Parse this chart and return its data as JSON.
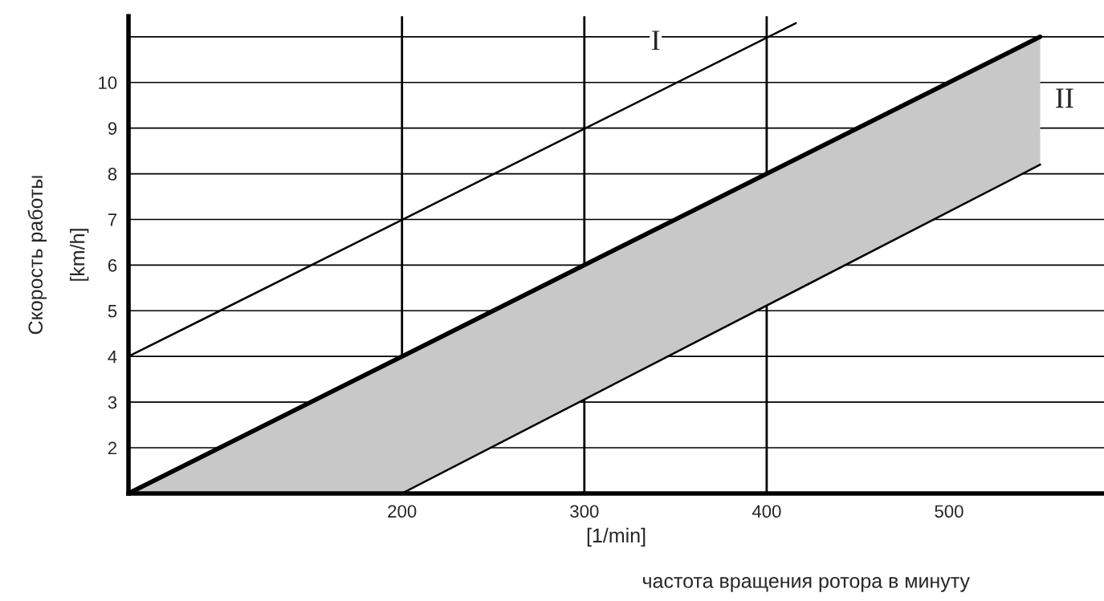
{
  "chart_data": {
    "type": "line",
    "xlabel": "[1/min]",
    "ylabel": "Скорость работы\n[km/h]",
    "annotations": [
      "частота вращения ротора в минуту"
    ],
    "series": [
      {
        "name": "I",
        "color": "#000000",
        "x": [
          50,
          416
        ],
        "values": [
          4,
          11.3
        ]
      },
      {
        "name": "II",
        "color": "#000000",
        "x": [
          50,
          200,
          550
        ],
        "values": [
          1,
          4,
          11
        ],
        "lower": [
          1,
          1,
          8.2
        ],
        "upper": [
          1,
          4,
          11
        ]
      },
      {
        "color": "#000000",
        "x": [
          200,
          550
        ],
        "values": [
          1,
          8.2
        ]
      }
    ],
    "xlim": [
      50,
      585
    ],
    "ylim": [
      1,
      11.45
    ],
    "xticks": [
      200,
      300,
      400,
      500
    ],
    "yticks": [
      2,
      3,
      4,
      5,
      6,
      7,
      8,
      9,
      10,
      {
        "value": 11,
        "label": null
      }
    ],
    "ref_lines": [
      {
        "axis": "x",
        "value": 200,
        "color": "#000000"
      },
      {
        "axis": "x",
        "value": 300,
        "color": "#000000"
      },
      {
        "axis": "x",
        "value": 400,
        "color": "#000000"
      }
    ],
    "grid": "y"
  }
}
